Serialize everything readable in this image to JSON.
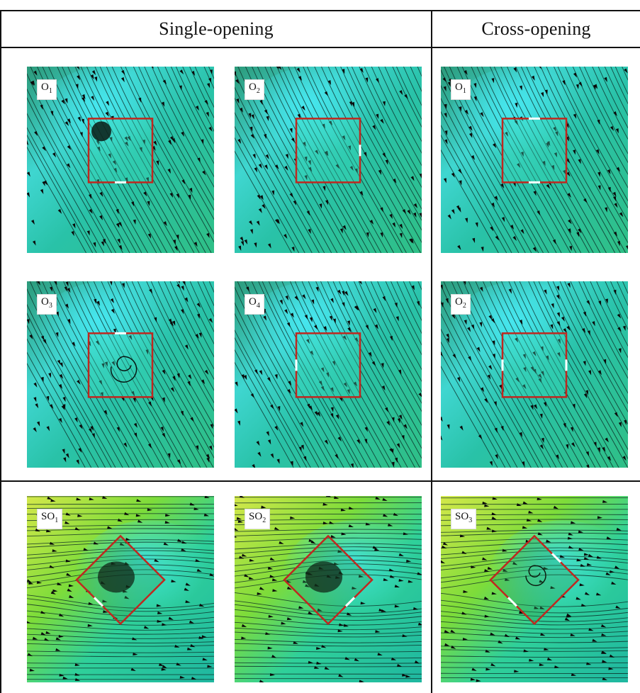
{
  "headers": {
    "single": "Single-opening",
    "cross": "Cross-opening"
  },
  "panels": [
    {
      "id": "p1",
      "label": "O",
      "sub": "1",
      "theme": "teal",
      "shape": "square",
      "box": [
        85,
        95
      ],
      "openings": [
        "bottom"
      ],
      "vortex": "dark"
    },
    {
      "id": "p2",
      "label": "O",
      "sub": "2",
      "theme": "teal",
      "shape": "square",
      "box": [
        90,
        90
      ],
      "openings": [
        "right"
      ],
      "vortex": "none"
    },
    {
      "id": "p3",
      "label": "O",
      "sub": "1",
      "theme": "teal",
      "shape": "square",
      "box": [
        90,
        90
      ],
      "openings": [
        "top",
        "bottom"
      ],
      "vortex": "none"
    },
    {
      "id": "p4",
      "label": "O",
      "sub": "3",
      "theme": "teal",
      "shape": "square",
      "box": [
        90,
        90
      ],
      "openings": [
        "top"
      ],
      "vortex": "swirl"
    },
    {
      "id": "p5",
      "label": "O",
      "sub": "4",
      "theme": "teal",
      "shape": "square",
      "box": [
        90,
        90
      ],
      "openings": [
        "left"
      ],
      "vortex": "none"
    },
    {
      "id": "p6",
      "label": "O",
      "sub": "2",
      "theme": "teal",
      "shape": "square",
      "box": [
        90,
        90
      ],
      "openings": [
        "left",
        "right"
      ],
      "vortex": "none"
    },
    {
      "id": "p7",
      "label": "SO",
      "sub": "1",
      "theme": "yellow",
      "shape": "diamond",
      "box": [
        85,
        85
      ],
      "openings": [
        "bottom-left"
      ],
      "vortex": "dark"
    },
    {
      "id": "p8",
      "label": "SO",
      "sub": "2",
      "theme": "yellow",
      "shape": "diamond",
      "box": [
        85,
        85
      ],
      "openings": [
        "bottom-right"
      ],
      "vortex": "dark"
    },
    {
      "id": "p9",
      "label": "SO",
      "sub": "3",
      "theme": "yellow",
      "shape": "diamond",
      "box": [
        85,
        85
      ],
      "openings": [
        "top-right",
        "bottom-left"
      ],
      "vortex": "swirl"
    }
  ]
}
